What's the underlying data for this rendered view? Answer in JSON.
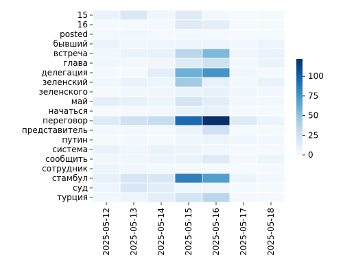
{
  "chart_data": {
    "type": "heatmap",
    "title": "",
    "xlabel": "",
    "ylabel": "",
    "x": [
      "2025-05-12",
      "2025-05-13",
      "2025-05-14",
      "2025-05-15",
      "2025-05-16",
      "2025-05-17",
      "2025-05-18"
    ],
    "y": [
      "15",
      "16",
      "posted",
      "бывший",
      "встреча",
      "глава",
      "делегация",
      "зеленский",
      "зеленского",
      "май",
      "начаться",
      "переговор",
      "представитель",
      "путин",
      "система",
      "сообщить",
      "сотрудник",
      "стамбул",
      "суд",
      "турция"
    ],
    "values": [
      [
        8,
        18,
        5,
        15,
        4,
        1,
        2
      ],
      [
        2,
        2,
        3,
        15,
        12,
        2,
        2
      ],
      [
        3,
        5,
        2,
        3,
        2,
        1,
        1
      ],
      [
        7,
        4,
        5,
        6,
        6,
        3,
        6
      ],
      [
        4,
        8,
        10,
        35,
        55,
        5,
        8
      ],
      [
        5,
        3,
        5,
        15,
        25,
        3,
        8
      ],
      [
        3,
        2,
        12,
        60,
        75,
        5,
        2
      ],
      [
        4,
        8,
        6,
        45,
        10,
        3,
        8
      ],
      [
        2,
        4,
        5,
        8,
        10,
        5,
        3
      ],
      [
        12,
        10,
        6,
        22,
        12,
        4,
        3
      ],
      [
        1,
        2,
        3,
        8,
        10,
        2,
        1
      ],
      [
        15,
        25,
        30,
        95,
        122,
        15,
        6
      ],
      [
        3,
        3,
        2,
        6,
        25,
        2,
        2
      ],
      [
        2,
        3,
        2,
        5,
        6,
        5,
        3
      ],
      [
        8,
        5,
        8,
        6,
        4,
        2,
        2
      ],
      [
        5,
        5,
        6,
        8,
        15,
        3,
        6
      ],
      [
        6,
        4,
        2,
        2,
        2,
        1,
        2
      ],
      [
        10,
        20,
        18,
        85,
        70,
        6,
        3
      ],
      [
        6,
        18,
        12,
        5,
        5,
        2,
        2
      ],
      [
        4,
        6,
        12,
        22,
        35,
        3,
        2
      ]
    ],
    "colorbar": {
      "min": 0,
      "max": 122,
      "ticks": [
        0,
        25,
        50,
        75,
        100
      ],
      "colormap": "Blues",
      "colors": [
        "#f7fbff",
        "#deebf7",
        "#c6dbef",
        "#9ecae1",
        "#6baed6",
        "#4292c6",
        "#2171b5",
        "#08519c",
        "#08306b"
      ]
    },
    "grid": false
  }
}
